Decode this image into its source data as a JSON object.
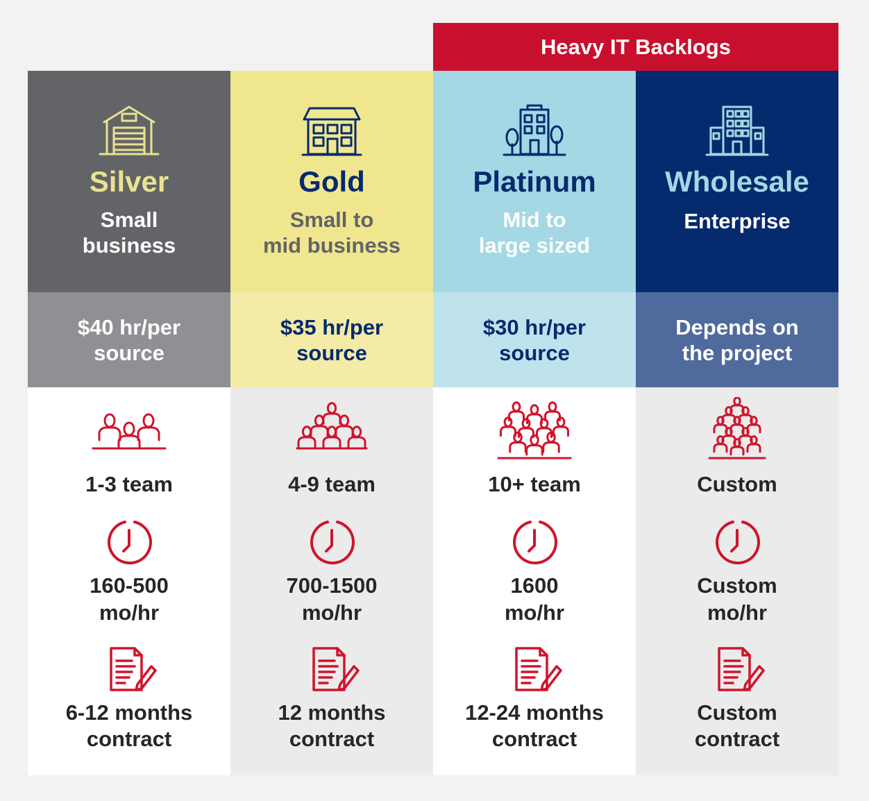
{
  "banner": {
    "label": "Heavy IT Backlogs",
    "color": "#c8102e"
  },
  "tiers": [
    {
      "name": "Silver",
      "segment": [
        "Small",
        "business"
      ],
      "price": [
        "$40 hr/per",
        "source"
      ],
      "team": "1-3 team",
      "hours": [
        "160-500",
        "mo/hr"
      ],
      "contract": [
        "6-12 months",
        "contract"
      ],
      "building_icon": "warehouse-icon",
      "team_icon": "team-small-icon",
      "colors": {
        "head_bg": "#636467",
        "price_bg": "#8f9093",
        "body_bg": "#ffffff",
        "tier": "#e9e38f",
        "segment": "#ffffff",
        "price_text": "#ffffff",
        "icon": "#e9e38f"
      }
    },
    {
      "name": "Gold",
      "segment": [
        "Small to",
        "mid business"
      ],
      "price": [
        "$35 hr/per",
        "source"
      ],
      "team": "4-9 team",
      "hours": [
        "700-1500",
        "mo/hr"
      ],
      "contract": [
        "12 months",
        "contract"
      ],
      "building_icon": "house-icon",
      "team_icon": "team-medium-icon",
      "colors": {
        "head_bg": "#f0e68e",
        "price_bg": "#f3eba6",
        "body_bg": "#ebebeb",
        "tier": "#062a6e",
        "segment": "#636467",
        "price_text": "#062a6e",
        "icon": "#062a6e"
      }
    },
    {
      "name": "Platinum",
      "segment": [
        "Mid to",
        "large sized"
      ],
      "price": [
        "$30 hr/per",
        "source"
      ],
      "team": "10+ team",
      "hours": [
        "1600",
        "mo/hr"
      ],
      "contract": [
        "12-24 months",
        "contract"
      ],
      "building_icon": "office-building-icon",
      "team_icon": "team-large-icon",
      "colors": {
        "head_bg": "#a3d8e4",
        "price_bg": "#bfe3ec",
        "body_bg": "#ffffff",
        "tier": "#062a6e",
        "segment": "#ffffff",
        "price_text": "#062a6e",
        "icon": "#062a6e"
      }
    },
    {
      "name": "Wholesale",
      "segment": [
        "Enterprise"
      ],
      "price": [
        "Depends on",
        "the project"
      ],
      "team": "Custom",
      "hours": [
        "Custom",
        "mo/hr"
      ],
      "contract": [
        "Custom",
        "contract"
      ],
      "building_icon": "skyscraper-icon",
      "team_icon": "team-custom-icon",
      "colors": {
        "head_bg": "#062a6e",
        "price_bg": "#4f6a9d",
        "body_bg": "#ebebeb",
        "tier": "#a3d8e4",
        "segment": "#ffffff",
        "price_text": "#ffffff",
        "icon": "#a3d8e4"
      }
    }
  ],
  "icon_names": {
    "clock": "clock-icon",
    "contract": "contract-icon"
  },
  "accent_red": "#d0142c"
}
